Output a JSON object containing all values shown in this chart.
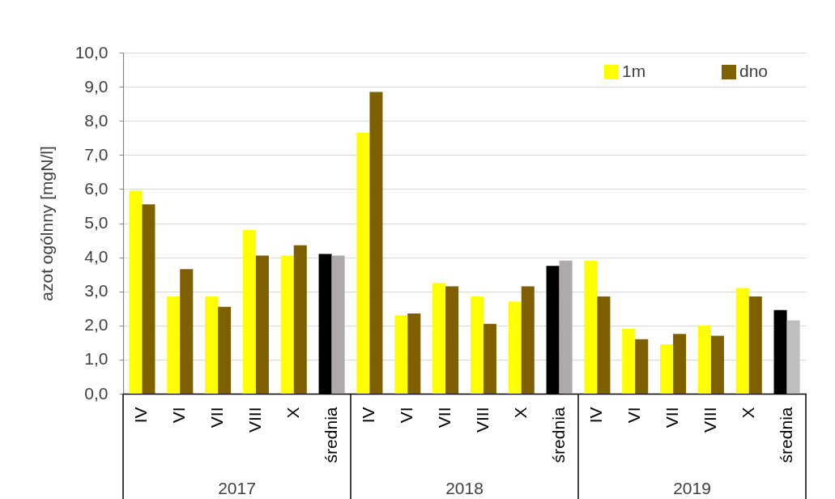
{
  "chart_data": {
    "type": "bar",
    "ylabel": "azot ogólnny [mgN/l]",
    "categories": [
      "IV",
      "VI",
      "VII",
      "VIII",
      "X",
      "średnia",
      "IV",
      "VI",
      "VII",
      "VIII",
      "X",
      "średnia",
      "IV",
      "VI",
      "VII",
      "VIII",
      "X",
      "średnia"
    ],
    "series": [
      {
        "name": "1m",
        "color": "#ffff00",
        "colors": [
          "#ffff00",
          "#ffff00",
          "#ffff00",
          "#ffff00",
          "#ffff00",
          "#000000",
          "#ffff00",
          "#ffff00",
          "#ffff00",
          "#ffff00",
          "#ffff00",
          "#000000",
          "#ffff00",
          "#ffff00",
          "#ffff00",
          "#ffff00",
          "#ffff00",
          "#000000"
        ],
        "values": [
          5.95,
          2.85,
          2.85,
          4.8,
          4.05,
          4.1,
          7.65,
          2.3,
          3.25,
          2.85,
          2.7,
          3.75,
          3.9,
          1.9,
          1.45,
          2.0,
          3.1,
          2.45
        ]
      },
      {
        "name": "dno",
        "color": "#7f6000",
        "colors": [
          "#7f6000",
          "#7f6000",
          "#7f6000",
          "#7f6000",
          "#7f6000",
          "#aeaaaa",
          "#7f6000",
          "#7f6000",
          "#7f6000",
          "#7f6000",
          "#7f6000",
          "#aeaaaa",
          "#7f6000",
          "#7f6000",
          "#7f6000",
          "#7f6000",
          "#7f6000",
          "#bfbfbf"
        ],
        "values": [
          5.55,
          3.65,
          2.55,
          4.05,
          4.35,
          4.05,
          8.85,
          2.35,
          3.15,
          2.05,
          3.15,
          3.9,
          2.85,
          1.6,
          1.75,
          1.7,
          2.85,
          2.15
        ]
      }
    ],
    "ylim": [
      0,
      10
    ],
    "yticks": [
      {
        "value": 0,
        "label": "0,0"
      },
      {
        "value": 1,
        "label": "1,0"
      },
      {
        "value": 2,
        "label": "2,0"
      },
      {
        "value": 3,
        "label": "3,0"
      },
      {
        "value": 4,
        "label": "4,0"
      },
      {
        "value": 5,
        "label": "5,0"
      },
      {
        "value": 6,
        "label": "6,0"
      },
      {
        "value": 7,
        "label": "7,0"
      },
      {
        "value": 8,
        "label": "8,0"
      },
      {
        "value": 9,
        "label": "9,0"
      },
      {
        "value": 10,
        "label": "10,0"
      }
    ],
    "grid": "y",
    "legend": "top right",
    "annotations": [
      "2017",
      "2018",
      "2019"
    ]
  }
}
